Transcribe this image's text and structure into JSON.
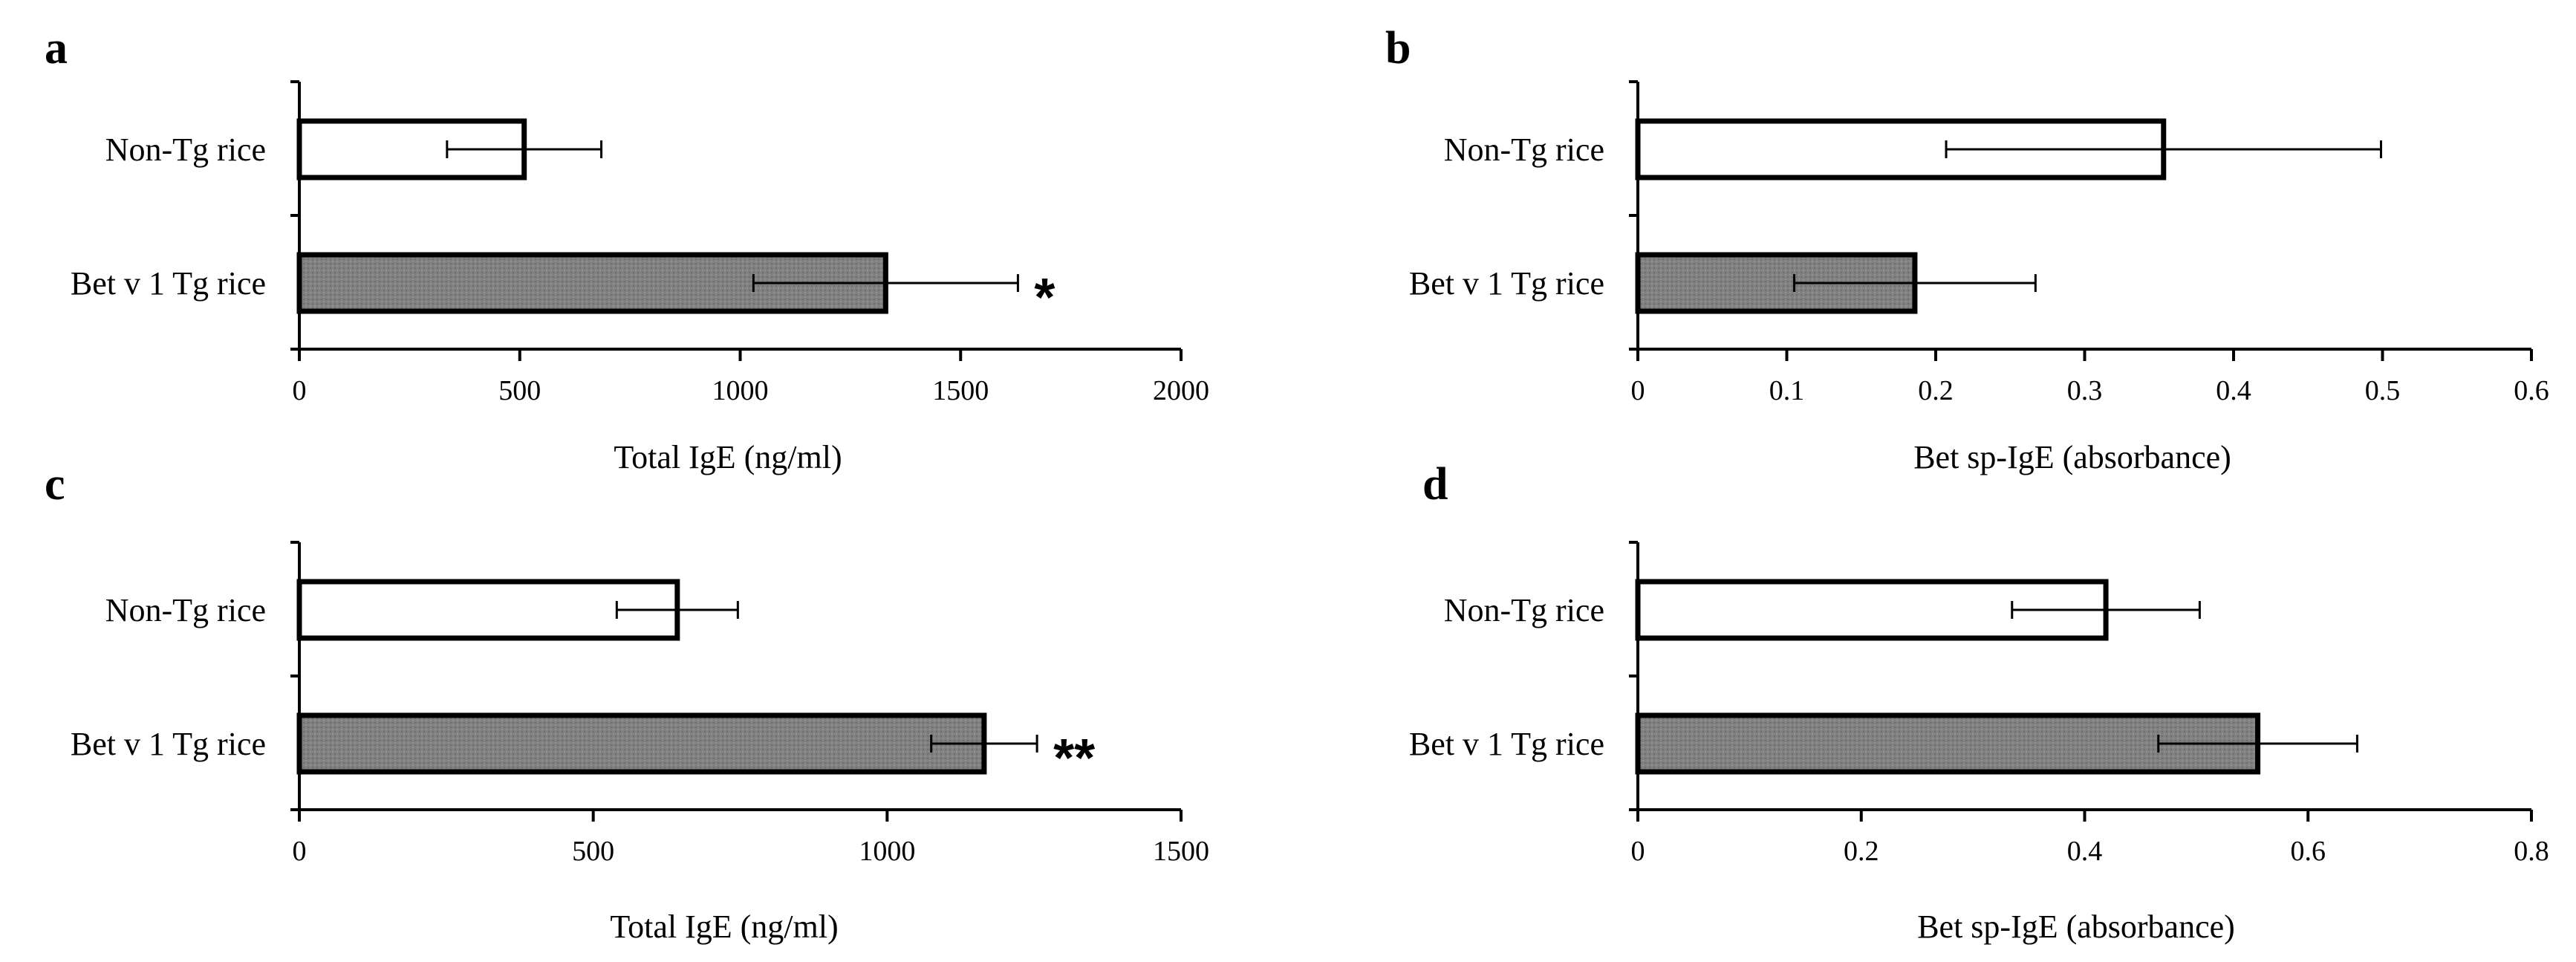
{
  "colors": {
    "open_bar": "#ffffff",
    "filled_bar": "#808080",
    "ink": "#000000"
  },
  "chart_data": [
    {
      "panel": "a",
      "type": "bar",
      "orientation": "horizontal",
      "categories": [
        "Non-Tg rice",
        "Bet v 1 Tg rice"
      ],
      "values": [
        510,
        1330
      ],
      "errors": [
        175,
        300
      ],
      "significance": [
        "",
        "*"
      ],
      "xlabel": "Total IgE (ng/ml)",
      "xlim": [
        0,
        2000
      ],
      "ticks": [
        0,
        500,
        1000,
        1500,
        2000
      ],
      "tick_labels": [
        "0",
        "500",
        "1000",
        "1500",
        "2000"
      ]
    },
    {
      "panel": "b",
      "type": "bar",
      "orientation": "horizontal",
      "categories": [
        "Non-Tg rice",
        "Bet v 1 Tg rice"
      ],
      "values": [
        0.353,
        0.186
      ],
      "errors": [
        0.146,
        0.081
      ],
      "significance": [
        "",
        ""
      ],
      "xlabel": "Bet sp-IgE (absorbance)",
      "xlim": [
        0,
        0.6
      ],
      "ticks": [
        0,
        0.1,
        0.2,
        0.3,
        0.4,
        0.5,
        0.6
      ],
      "tick_labels": [
        "0",
        "0.1",
        "0.2",
        "0.3",
        "0.4",
        "0.5",
        "0.6"
      ]
    },
    {
      "panel": "c",
      "type": "bar",
      "orientation": "horizontal",
      "categories": [
        "Non-Tg rice",
        "Bet v 1 Tg rice"
      ],
      "values": [
        643,
        1165
      ],
      "errors": [
        103,
        90
      ],
      "significance": [
        "",
        "**"
      ],
      "xlabel": "Total IgE (ng/ml)",
      "xlim": [
        0,
        1500
      ],
      "ticks": [
        0,
        500,
        1000,
        1500
      ],
      "tick_labels": [
        "0",
        "500",
        "1000",
        "1500"
      ]
    },
    {
      "panel": "d",
      "type": "bar",
      "orientation": "horizontal",
      "categories": [
        "Non-Tg rice",
        "Bet v 1 Tg rice"
      ],
      "values": [
        0.419,
        0.555
      ],
      "errors": [
        0.084,
        0.089
      ],
      "significance": [
        "",
        ""
      ],
      "xlabel": "Bet sp-IgE (absorbance)",
      "xlim": [
        0,
        0.8
      ],
      "ticks": [
        0,
        0.2,
        0.4,
        0.6,
        0.8
      ],
      "tick_labels": [
        "0",
        "0.2",
        "0.4",
        "0.6",
        "0.8"
      ]
    }
  ]
}
